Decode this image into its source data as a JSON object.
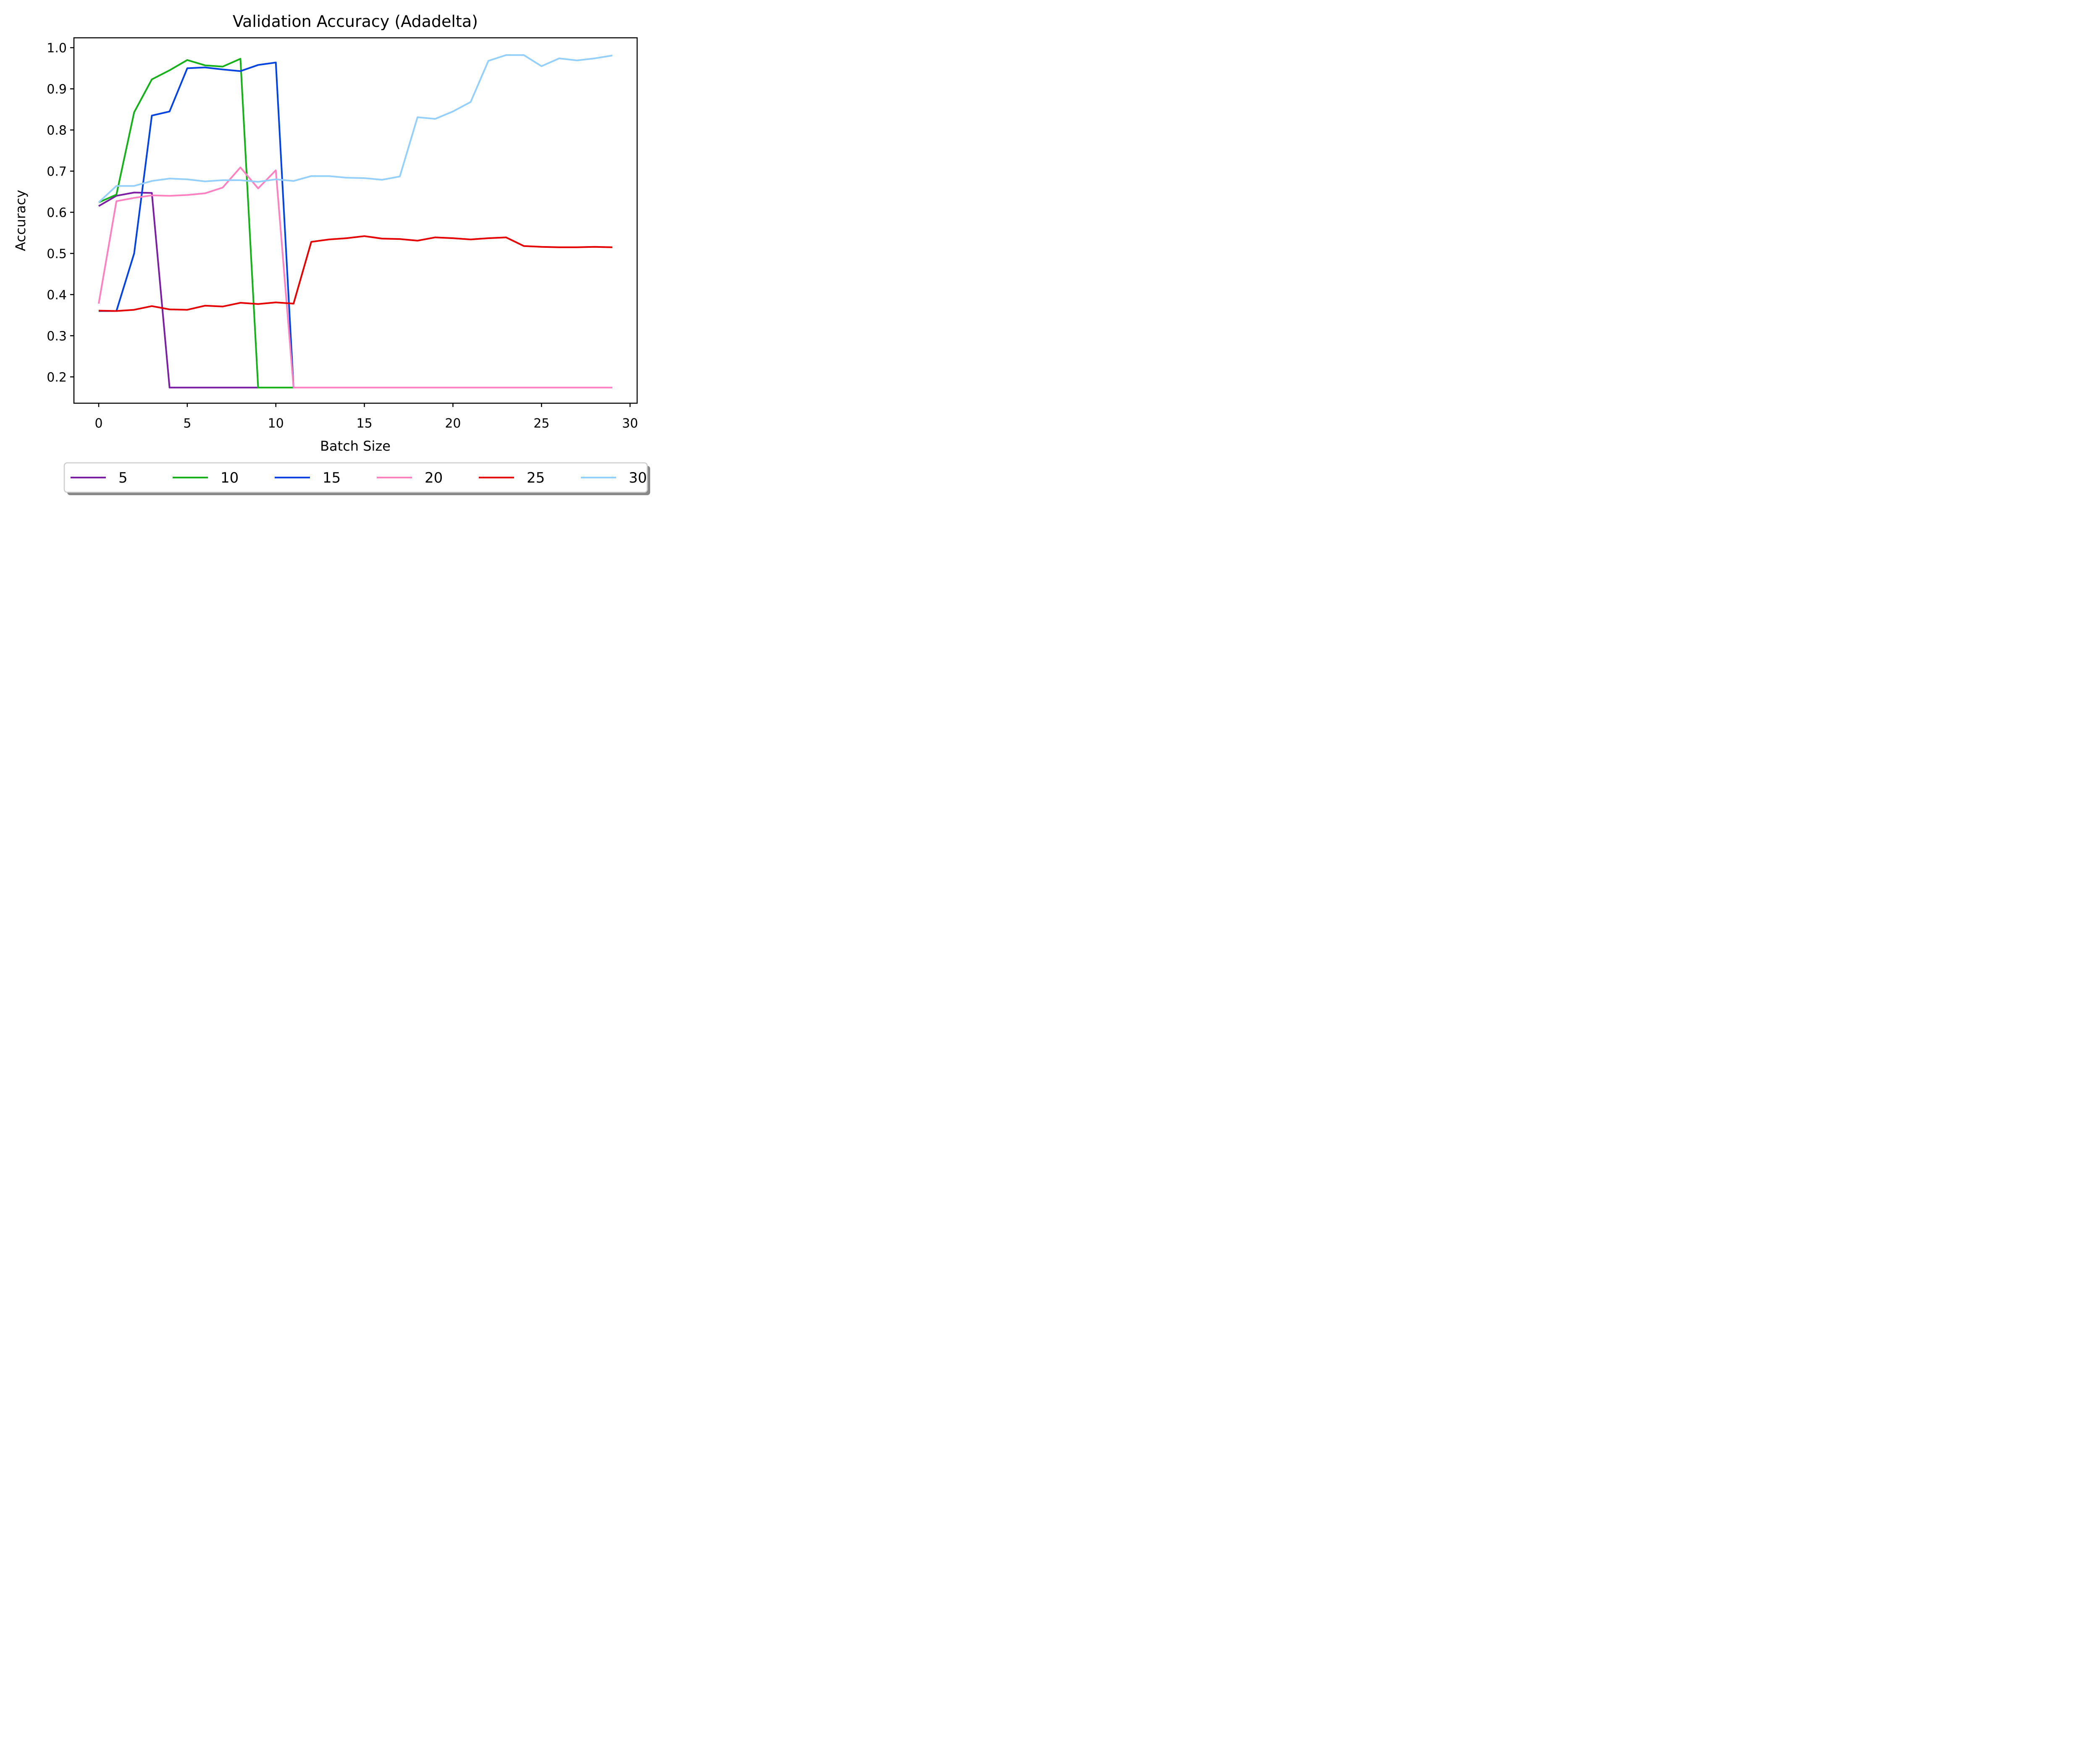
{
  "chart_data": {
    "type": "line",
    "title": "Validation Accuracy (Adadelta)",
    "xlabel": "Batch Size",
    "ylabel": "Accuracy",
    "xlim": [
      -1.4,
      30.4
    ],
    "ylim": [
      0.136,
      1.024
    ],
    "xticks": [
      "0",
      "5",
      "10",
      "15",
      "20",
      "25",
      "30"
    ],
    "yticks": [
      "0.2",
      "0.3",
      "0.4",
      "0.5",
      "0.6",
      "0.7",
      "0.8",
      "0.9",
      "1.0"
    ],
    "grid": false,
    "legend_position": "below",
    "x": [
      0,
      1,
      2,
      3,
      4,
      5,
      6,
      7,
      8,
      9,
      10,
      11,
      12,
      13,
      14,
      15,
      16,
      17,
      18,
      19,
      20,
      21,
      22,
      23,
      24,
      25,
      26,
      27,
      28,
      29
    ],
    "series": [
      {
        "name": "5",
        "color": "#7b1fa2",
        "values": [
          0.615,
          0.64,
          0.648,
          0.647,
          0.174,
          0.174,
          0.174,
          0.174,
          0.174,
          0.174,
          null,
          null,
          null,
          null,
          null,
          null,
          null,
          null,
          null,
          null,
          null,
          null,
          null,
          null,
          null,
          null,
          null,
          null,
          null,
          null
        ]
      },
      {
        "name": "10",
        "color": "#15b01a",
        "values": [
          0.624,
          0.643,
          0.843,
          0.923,
          0.945,
          0.97,
          0.957,
          0.954,
          0.973,
          0.174,
          0.174,
          0.174,
          null,
          null,
          null,
          null,
          null,
          null,
          null,
          null,
          null,
          null,
          null,
          null,
          null,
          null,
          null,
          null,
          null,
          null
        ]
      },
      {
        "name": "15",
        "color": "#0343df",
        "values": [
          0.36,
          0.36,
          0.5,
          0.835,
          0.845,
          0.95,
          0.952,
          0.947,
          0.943,
          0.958,
          0.964,
          0.174,
          null,
          null,
          null,
          null,
          null,
          null,
          null,
          null,
          null,
          null,
          null,
          null,
          null,
          null,
          null,
          null,
          null,
          null
        ]
      },
      {
        "name": "20",
        "color": "#ff81c0",
        "values": [
          0.378,
          0.627,
          0.635,
          0.641,
          0.64,
          0.642,
          0.646,
          0.66,
          0.709,
          0.658,
          0.702,
          0.174,
          0.174,
          0.174,
          0.174,
          0.174,
          0.174,
          0.174,
          0.174,
          0.174,
          0.174,
          0.174,
          0.174,
          0.174,
          0.174,
          0.174,
          0.174,
          0.174,
          0.174,
          0.174
        ]
      },
      {
        "name": "25",
        "color": "#e50000",
        "values": [
          0.361,
          0.36,
          0.363,
          0.372,
          0.364,
          0.363,
          0.373,
          0.371,
          0.38,
          0.377,
          0.381,
          0.378,
          0.528,
          0.534,
          0.537,
          0.542,
          0.536,
          0.535,
          0.531,
          0.539,
          0.537,
          0.534,
          0.537,
          0.539,
          0.518,
          0.516,
          0.515,
          0.515,
          0.516,
          0.515
        ]
      },
      {
        "name": "30",
        "color": "#95d0fc",
        "values": [
          0.624,
          0.664,
          0.664,
          0.676,
          0.682,
          0.68,
          0.675,
          0.678,
          0.678,
          0.674,
          0.68,
          0.676,
          0.688,
          0.688,
          0.684,
          0.683,
          0.679,
          0.687,
          0.831,
          0.827,
          0.845,
          0.868,
          0.968,
          0.982,
          0.982,
          0.955,
          0.974,
          0.969,
          0.974,
          0.981
        ]
      }
    ]
  }
}
